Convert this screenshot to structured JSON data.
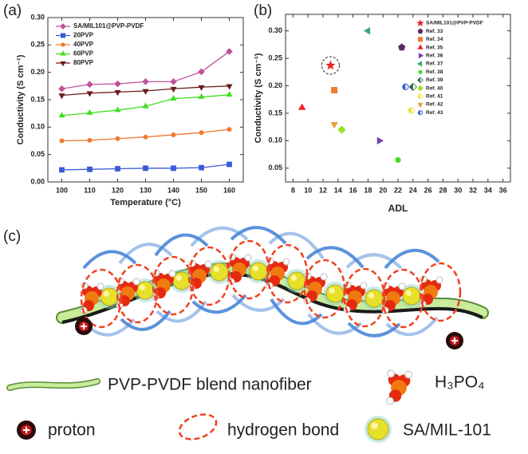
{
  "chart_data": [
    {
      "type": "line",
      "panel_label": "(a)",
      "x_label": "Temperature (°C)",
      "y_label": "Conductivity (S cm⁻¹)",
      "x": [
        100,
        110,
        120,
        130,
        140,
        150,
        160
      ],
      "xlim": [
        95,
        165
      ],
      "xticks": [
        100,
        110,
        120,
        130,
        140,
        150,
        160
      ],
      "ylim": [
        0,
        0.3
      ],
      "yticks": [
        {
          "value": 0,
          "label": "0.00"
        },
        0.05,
        {
          "value": 0.1,
          "label": "0.10"
        },
        0.15,
        {
          "value": 0.2,
          "label": "0.20"
        },
        0.25,
        {
          "value": 0.3,
          "label": "0.30"
        }
      ],
      "legend": "upper left",
      "series": [
        {
          "name": "SA/MIL101@PVP-PVDF",
          "color": "#c0509a",
          "marker": "diamond",
          "values": [
            0.17,
            0.178,
            0.179,
            0.183,
            0.183,
            0.201,
            0.238
          ]
        },
        {
          "name": "20PVP",
          "color": "#3a5ad8",
          "marker": "square",
          "values": [
            0.022,
            0.023,
            0.024,
            0.025,
            0.025,
            0.026,
            0.032
          ]
        },
        {
          "name": "40PVP",
          "color": "#f07a30",
          "marker": "circle",
          "values": [
            0.075,
            0.076,
            0.079,
            0.082,
            0.086,
            0.09,
            0.096
          ]
        },
        {
          "name": "60PVP",
          "color": "#44dd22",
          "marker": "triangle",
          "values": [
            0.121,
            0.126,
            0.131,
            0.138,
            0.152,
            0.155,
            0.159
          ]
        },
        {
          "name": "80PVP",
          "color": "#6b1c1c",
          "marker": "triangle-down",
          "values": [
            0.158,
            0.162,
            0.164,
            0.166,
            0.17,
            0.173,
            0.175
          ]
        }
      ]
    },
    {
      "type": "scatter",
      "panel_label": "(b)",
      "x_label": "ADL",
      "y_label": "Conductivity (S cm⁻¹)",
      "xlim": [
        7,
        37
      ],
      "xticks": [
        8,
        10,
        12,
        14,
        16,
        18,
        20,
        22,
        24,
        26,
        28,
        30,
        32,
        34,
        36
      ],
      "ylim": [
        0.025,
        0.33
      ],
      "yticks": [
        0.05,
        {
          "value": 0.1,
          "label": "0.10"
        },
        0.15,
        {
          "value": 0.2,
          "label": "0.20"
        },
        0.25,
        {
          "value": 0.3,
          "label": "0.30"
        }
      ],
      "legend": "upper right",
      "series": [
        {
          "name": "SA/MIL101@PVP-PVDF",
          "color": "#ee2222",
          "marker": "star",
          "x": [
            13
          ],
          "values": [
            0.237
          ]
        },
        {
          "name": "Ref. 33",
          "color": "#5a2a6a",
          "marker": "pentagon",
          "x": [
            22.5
          ],
          "values": [
            0.27
          ]
        },
        {
          "name": "Ref. 34",
          "color": "#f07a30",
          "marker": "square",
          "x": [
            13.5
          ],
          "values": [
            0.192
          ]
        },
        {
          "name": "Ref. 35",
          "color": "#ee2222",
          "marker": "triangle",
          "x": [
            9.2
          ],
          "values": [
            0.16
          ]
        },
        {
          "name": "Ref. 36",
          "color": "#7a40b0",
          "marker": "triangle-right",
          "x": [
            19.5
          ],
          "values": [
            0.1
          ]
        },
        {
          "name": "Ref. 37",
          "color": "#3aa870",
          "marker": "triangle-left",
          "x": [
            18
          ],
          "values": [
            0.3
          ]
        },
        {
          "name": "Ref. 38",
          "color": "#44dd22",
          "marker": "circle",
          "x": [
            22
          ],
          "values": [
            0.065
          ]
        },
        {
          "name": "Ref. 39",
          "color": "#226644",
          "marker": "half-diamond",
          "x": [
            24
          ],
          "values": [
            0.198
          ]
        },
        {
          "name": "Ref. 40",
          "color": "#99e022",
          "marker": "diamond",
          "x": [
            14.5
          ],
          "values": [
            0.12
          ]
        },
        {
          "name": "Ref. 41",
          "color": "#f0e030",
          "marker": "half-circle",
          "x": [
            23.8
          ],
          "values": [
            0.155
          ]
        },
        {
          "name": "Ref. 42",
          "color": "#e8a040",
          "marker": "triangle-down",
          "x": [
            13.5
          ],
          "values": [
            0.13
          ]
        },
        {
          "name": "Ref. 43",
          "color": "#3a5ad8",
          "marker": "half-circle",
          "x": [
            23
          ],
          "values": [
            0.198
          ]
        }
      ]
    }
  ],
  "diagram": {
    "panel_label": "(c)",
    "legend": [
      "PVP-PVDF blend nanofiber",
      "H₃PO₄",
      "proton",
      "hydrogen bond",
      "SA/MIL-101"
    ]
  }
}
